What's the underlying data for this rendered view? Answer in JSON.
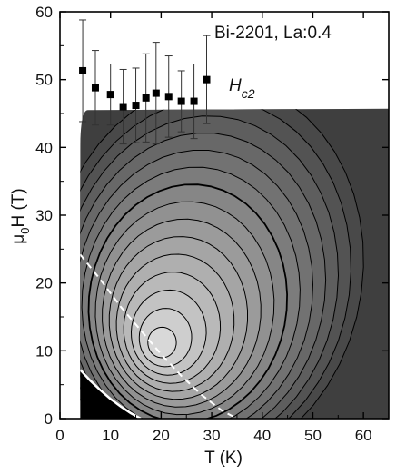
{
  "chart_data": {
    "type": "contour",
    "annotation": "Bi-2201, La:0.4",
    "hc2_label": {
      "main": "H",
      "sub": "c2"
    },
    "xlabel": "T (K)",
    "ylabel": {
      "mu": "μ",
      "sub": "0",
      "rest": "H (T)"
    },
    "xlim": [
      0,
      65
    ],
    "ylim": [
      0,
      60
    ],
    "xticks": [
      0,
      10,
      20,
      30,
      40,
      50,
      60
    ],
    "yticks": [
      0,
      10,
      20,
      30,
      40,
      50,
      60
    ],
    "data_region": {
      "t_min": 4,
      "t_max": 65,
      "h_max_left": 45.5,
      "h_max_right": 45.7
    },
    "contour_peak": {
      "T": 19.5,
      "H": 10.5
    },
    "contour_levels": 15,
    "hc2_points": {
      "T": [
        4.5,
        7,
        10,
        12.5,
        15,
        17,
        19,
        21.5,
        24,
        26.5,
        29
      ],
      "H": [
        51.3,
        48.8,
        47.8,
        46.0,
        46.2,
        47.3,
        48.0,
        47.5,
        46.8,
        46.8,
        50.0
      ],
      "H_err": [
        7.5,
        5.5,
        4.5,
        5.5,
        5.5,
        6.5,
        7.5,
        6.0,
        4.5,
        5.5,
        6.5
      ]
    },
    "white_dashed_line": {
      "T": [
        4,
        8,
        12,
        16,
        20,
        24,
        28,
        32,
        35
      ],
      "H": [
        24.2,
        20.5,
        16.5,
        13,
        9.5,
        6.3,
        3.5,
        1.2,
        0
      ]
    },
    "white_solid_line": {
      "T": [
        4,
        6,
        8,
        10,
        12,
        14,
        16
      ],
      "H": [
        7.2,
        5.6,
        4.2,
        2.9,
        1.8,
        0.8,
        0
      ]
    },
    "colors": {
      "darkest": "#3f3f3f",
      "lightest": "#e2e2e2",
      "black_region": "#000000"
    }
  }
}
